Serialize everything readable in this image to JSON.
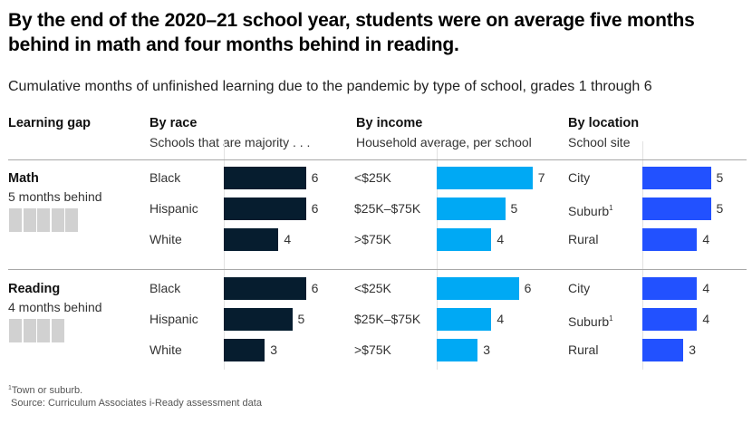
{
  "header": {
    "title": "By the end of the 2020–21 school year, students were on average five months behind in math and four months behind in reading.",
    "subtitle": "Cumulative months of unfinished learning due to the pandemic by type of school, grades 1 through 6"
  },
  "columns": {
    "gap": {
      "title": "Learning gap"
    },
    "race": {
      "title": "By race",
      "subtitle": "Schools that are majority . . ."
    },
    "income": {
      "title": "By income",
      "subtitle": "Household average, per school"
    },
    "location": {
      "title": "By location",
      "subtitle": "School site"
    }
  },
  "colors": {
    "race": "#061d2f",
    "income": "#00a9f4",
    "location": "#2251ff",
    "month_block": "#d1d1d1"
  },
  "footnotes": {
    "note": "Town or suburb.",
    "note_marker": "1",
    "source": "Source: Curriculum Associates i-Ready assessment data"
  },
  "chart_data": {
    "type": "bar",
    "orientation": "horizontal",
    "title": "By the end of the 2020–21 school year, students were on average five months behind in math and four months behind in reading.",
    "subtitle": "Cumulative months of unfinished learning due to the pandemic by type of school, grades 1 through 6",
    "unit": "months",
    "xlim": [
      0,
      7
    ],
    "sections": [
      {
        "name": "Math",
        "summary": "5 months behind",
        "summary_value": 5,
        "groups": [
          {
            "key": "race",
            "categories": [
              "Black",
              "Hispanic",
              "White"
            ],
            "values": [
              6,
              6,
              4
            ]
          },
          {
            "key": "income",
            "categories": [
              "<$25K",
              "$25K–$75K",
              ">$75K"
            ],
            "values": [
              7,
              5,
              4
            ]
          },
          {
            "key": "location",
            "categories": [
              "City",
              "Suburb",
              "Rural"
            ],
            "footnote_marks": [
              "",
              "1",
              ""
            ],
            "values": [
              5,
              5,
              4
            ]
          }
        ]
      },
      {
        "name": "Reading",
        "summary": "4 months behind",
        "summary_value": 4,
        "groups": [
          {
            "key": "race",
            "categories": [
              "Black",
              "Hispanic",
              "White"
            ],
            "values": [
              6,
              5,
              3
            ]
          },
          {
            "key": "income",
            "categories": [
              "<$25K",
              "$25K–$75K",
              ">$75K"
            ],
            "values": [
              6,
              4,
              3
            ]
          },
          {
            "key": "location",
            "categories": [
              "City",
              "Suburb",
              "Rural"
            ],
            "footnote_marks": [
              "",
              "1",
              ""
            ],
            "values": [
              4,
              4,
              3
            ]
          }
        ]
      }
    ]
  }
}
